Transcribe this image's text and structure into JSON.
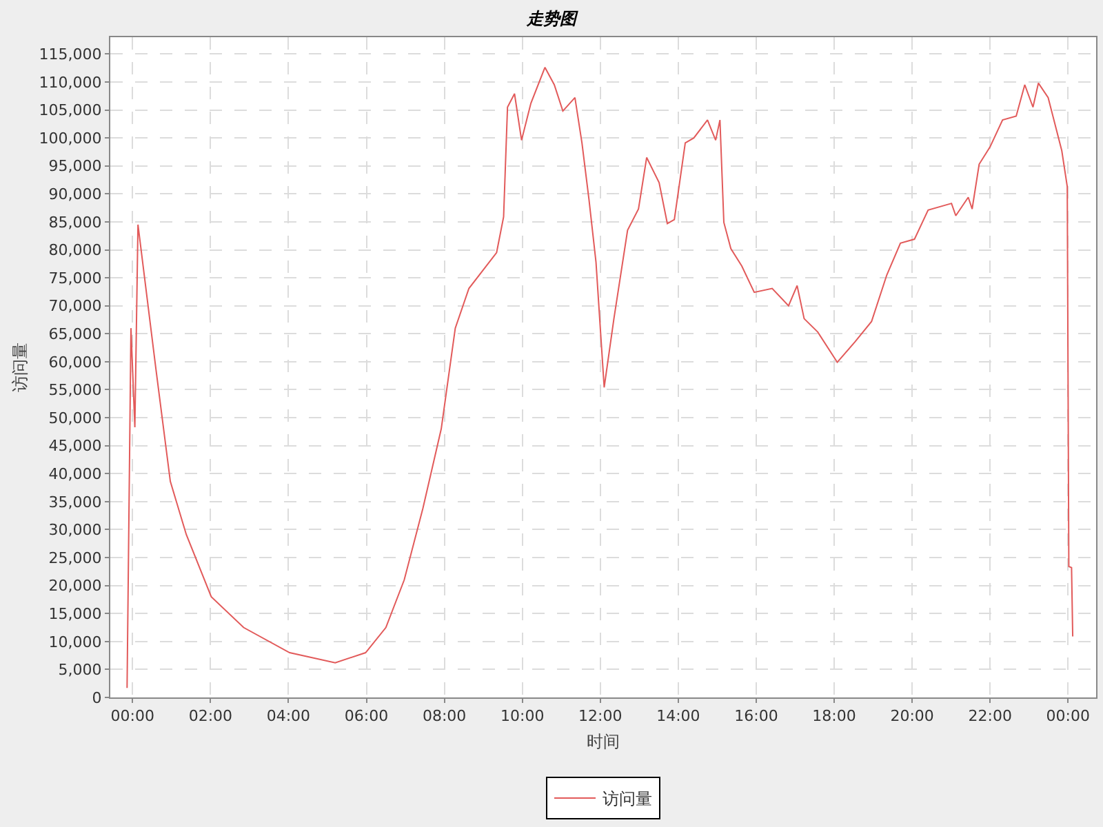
{
  "chart_data": {
    "type": "line",
    "title": "走势图",
    "xlabel": "时间",
    "ylabel": "访问量",
    "x": [
      -0.14,
      -0.04,
      0.06,
      0.14,
      0.6,
      0.97,
      1.38,
      2.02,
      2.85,
      4.03,
      5.2,
      5.98,
      6.5,
      6.97,
      7.45,
      7.92,
      8.28,
      8.63,
      9.34,
      9.52,
      9.62,
      9.8,
      9.98,
      10.22,
      10.58,
      10.82,
      11.04,
      11.35,
      11.53,
      11.71,
      11.89,
      12.1,
      12.35,
      12.7,
      12.98,
      13.19,
      13.51,
      13.72,
      13.9,
      14.18,
      14.4,
      14.75,
      14.96,
      15.07,
      15.17,
      15.35,
      15.63,
      15.95,
      16.41,
      16.83,
      17.05,
      17.23,
      17.58,
      18.08,
      18.54,
      18.96,
      19.35,
      19.7,
      20.06,
      20.41,
      21.01,
      21.12,
      21.44,
      21.54,
      21.72,
      22.0,
      22.32,
      22.67,
      22.89,
      23.1,
      23.24,
      23.49,
      23.84,
      23.98,
      24.02,
      24.09,
      24.12
    ],
    "series": [
      {
        "name": "访问量",
        "color": "#e25a5a",
        "values": [
          1700,
          66000,
          48300,
          84500,
          58700,
          38600,
          29100,
          18000,
          12500,
          8000,
          6200,
          8000,
          12500,
          21000,
          33800,
          48000,
          66000,
          73100,
          79500,
          85900,
          105500,
          107900,
          99600,
          106200,
          112600,
          109500,
          104800,
          107200,
          99100,
          89000,
          77800,
          55400,
          67700,
          83500,
          87300,
          96500,
          92000,
          84700,
          85400,
          99100,
          100000,
          103200,
          99600,
          103200,
          84900,
          80200,
          77100,
          72400,
          73100,
          70000,
          73600,
          67700,
          65300,
          59900,
          63600,
          67200,
          75500,
          81200,
          81900,
          87100,
          88300,
          86100,
          89400,
          87300,
          95300,
          98400,
          103200,
          103900,
          109500,
          105500,
          109800,
          107200,
          97700,
          91300,
          23400,
          23200,
          10900
        ]
      }
    ],
    "xlim": [
      -0.57,
      24.72
    ],
    "xticks": [
      {
        "value": 0,
        "label": "00:00"
      },
      {
        "value": 2,
        "label": "02:00"
      },
      {
        "value": 4,
        "label": "04:00"
      },
      {
        "value": 6,
        "label": "06:00"
      },
      {
        "value": 8,
        "label": "08:00"
      },
      {
        "value": 10,
        "label": "10:00"
      },
      {
        "value": 12,
        "label": "12:00"
      },
      {
        "value": 14,
        "label": "14:00"
      },
      {
        "value": 16,
        "label": "16:00"
      },
      {
        "value": 18,
        "label": "18:00"
      },
      {
        "value": 20,
        "label": "20:00"
      },
      {
        "value": 22,
        "label": "22:00"
      },
      {
        "value": 24,
        "label": "00:00"
      }
    ],
    "ylim": [
      0,
      118000
    ],
    "yticks": [
      0,
      {
        "value": 5000,
        "label": "5,000"
      },
      {
        "value": 10000,
        "label": "10,000"
      },
      {
        "value": 15000,
        "label": "15,000"
      },
      {
        "value": 20000,
        "label": "20,000"
      },
      {
        "value": 25000,
        "label": "25,000"
      },
      {
        "value": 30000,
        "label": "30,000"
      },
      {
        "value": 35000,
        "label": "35,000"
      },
      {
        "value": 40000,
        "label": "40,000"
      },
      {
        "value": 45000,
        "label": "45,000"
      },
      {
        "value": 50000,
        "label": "50,000"
      },
      {
        "value": 55000,
        "label": "55,000"
      },
      {
        "value": 60000,
        "label": "60,000"
      },
      {
        "value": 65000,
        "label": "65,000"
      },
      {
        "value": 70000,
        "label": "70,000"
      },
      {
        "value": 75000,
        "label": "75,000"
      },
      {
        "value": 80000,
        "label": "80,000"
      },
      {
        "value": 85000,
        "label": "85,000"
      },
      {
        "value": 90000,
        "label": "90,000"
      },
      {
        "value": 95000,
        "label": "95,000"
      },
      {
        "value": 100000,
        "label": "100,000"
      },
      {
        "value": 105000,
        "label": "105,000"
      },
      {
        "value": 110000,
        "label": "110,000"
      },
      {
        "value": 115000,
        "label": "115,000"
      }
    ],
    "grid": true,
    "legend": "bottom",
    "marker": "none",
    "line_style": "solid"
  }
}
